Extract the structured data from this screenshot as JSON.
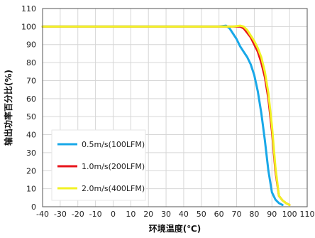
{
  "chart_data": {
    "type": "line",
    "title": "",
    "xlabel": "环境温度(℃)",
    "ylabel": "输出功率百分比(%)",
    "xlim": [
      -40,
      110
    ],
    "ylim": [
      0,
      110
    ],
    "xticks": [
      -40,
      -30,
      -20,
      -10,
      0,
      10,
      20,
      30,
      40,
      50,
      60,
      70,
      80,
      90,
      100,
      110
    ],
    "yticks": [
      0,
      10,
      20,
      30,
      40,
      50,
      60,
      70,
      80,
      90,
      100,
      110
    ],
    "grid": true,
    "legend_position": "bottom-left",
    "series": [
      {
        "name": "0.5m/s(100LFM)",
        "color": "#19a8e8",
        "points": [
          [
            -40,
            100
          ],
          [
            60,
            100
          ],
          [
            64,
            100.5
          ],
          [
            66,
            99
          ],
          [
            68,
            96
          ],
          [
            70,
            93
          ],
          [
            72,
            89
          ],
          [
            74,
            86
          ],
          [
            76,
            83
          ],
          [
            78,
            79
          ],
          [
            80,
            73
          ],
          [
            82,
            64
          ],
          [
            84,
            52
          ],
          [
            86,
            37
          ],
          [
            88,
            20
          ],
          [
            90,
            8
          ],
          [
            92,
            4
          ],
          [
            94,
            2
          ],
          [
            96,
            1
          ]
        ]
      },
      {
        "name": "1.0m/s(200LFM)",
        "color": "#e8141b",
        "points": [
          [
            -40,
            100
          ],
          [
            70,
            100
          ],
          [
            72,
            100
          ],
          [
            74,
            99
          ],
          [
            76,
            96.5
          ],
          [
            78,
            94
          ],
          [
            80,
            90
          ],
          [
            82,
            86
          ],
          [
            84,
            80
          ],
          [
            86,
            72
          ],
          [
            88,
            60
          ],
          [
            90,
            42
          ],
          [
            92,
            20
          ],
          [
            94,
            6
          ],
          [
            96,
            3.5
          ],
          [
            98,
            2
          ],
          [
            100,
            1
          ]
        ]
      },
      {
        "name": "2.0m/s(400LFM)",
        "color": "#f2f224",
        "points": [
          [
            -40,
            100
          ],
          [
            68,
            100
          ],
          [
            72,
            100.5
          ],
          [
            74,
            100
          ],
          [
            76,
            98
          ],
          [
            78,
            95
          ],
          [
            80,
            92
          ],
          [
            82,
            88
          ],
          [
            84,
            83
          ],
          [
            86,
            75
          ],
          [
            88,
            63
          ],
          [
            90,
            45
          ],
          [
            92,
            22
          ],
          [
            94,
            6
          ],
          [
            96,
            3.5
          ],
          [
            98,
            2
          ],
          [
            100,
            1
          ]
        ]
      }
    ]
  }
}
